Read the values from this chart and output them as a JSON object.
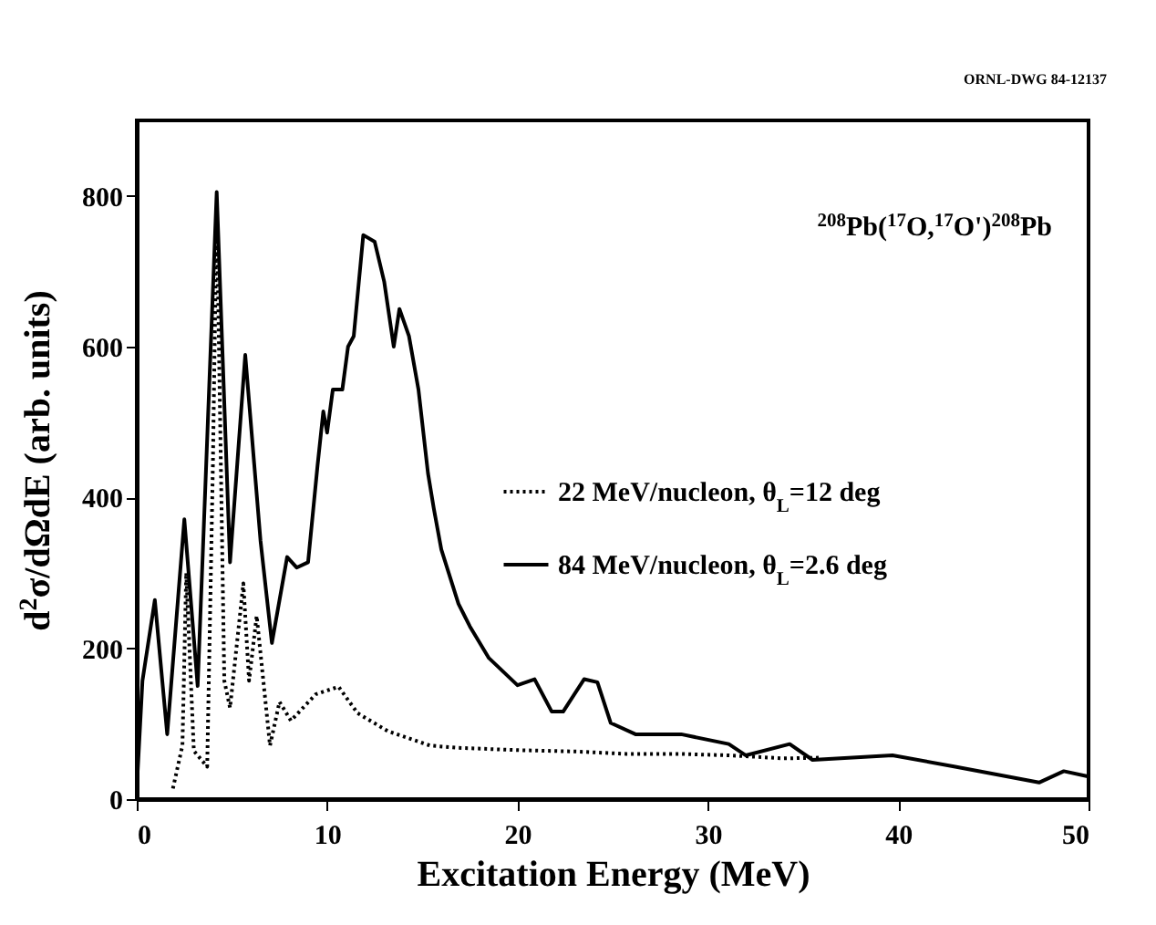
{
  "chart_data": {
    "type": "line",
    "xlabel": "Excitation Energy (MeV)",
    "ylabel": "d$^{2}$σ/dΩdE (arb. units)",
    "annotations": [
      "$^{208}$Pb($^{17}$O,$^{17}$O')$^{208}$Pb",
      "ORNL-DWG 84-12137"
    ],
    "xlim": [
      0,
      50
    ],
    "xticks": [
      0,
      10,
      20,
      30,
      40,
      50
    ],
    "ylim": [
      0,
      900
    ],
    "yticks": [
      0,
      200,
      400,
      600,
      800
    ],
    "legend": "right",
    "grid": false,
    "series": [
      {
        "name": "22 MeV/nucleon, θ$_{L}$=12 deg",
        "color": "#000000",
        "line_style": "dotted",
        "x": [
          1.9,
          2.4,
          2.6,
          3.0,
          3.7,
          4.0,
          4.2,
          4.6,
          4.9,
          5.6,
          5.9,
          6.3,
          7.0,
          7.5,
          8.1,
          9.4,
          10.6,
          11.6,
          13.2,
          15.4,
          16.9,
          20.0,
          23.2,
          25.7,
          28.5,
          31.1,
          34.0,
          36.0
        ],
        "values": [
          14,
          71,
          300,
          64,
          43,
          443,
          786,
          157,
          121,
          286,
          157,
          243,
          71,
          129,
          104,
          139,
          149,
          114,
          90,
          71,
          68,
          65,
          63,
          60,
          60,
          58,
          54,
          55
        ]
      },
      {
        "name": "84 MeV/nucleon, θ$_{L}$=2.6 deg",
        "color": "#000000",
        "line_style": "solid",
        "x": [
          0,
          0.3,
          0.95,
          1.6,
          2.5,
          3.2,
          4.2,
          4.9,
          5.7,
          6.5,
          7.1,
          7.9,
          8.4,
          9.0,
          9.5,
          9.8,
          10.0,
          10.3,
          10.8,
          11.1,
          11.4,
          11.9,
          12.5,
          13.0,
          13.5,
          13.8,
          14.3,
          14.8,
          15.3,
          15.6,
          16.0,
          16.9,
          17.5,
          18.5,
          20.0,
          20.9,
          21.8,
          22.4,
          23.5,
          24.2,
          24.9,
          26.2,
          28.6,
          31.1,
          32.0,
          34.3,
          35.5,
          39.7,
          43.0,
          47.4,
          48.7,
          50.0
        ],
        "values": [
          14,
          157,
          264,
          86,
          371,
          150,
          805,
          314,
          589,
          343,
          207,
          321,
          307,
          314,
          443,
          514,
          486,
          543,
          543,
          600,
          614,
          748,
          739,
          686,
          600,
          650,
          614,
          543,
          432,
          386,
          331,
          259,
          229,
          187,
          151,
          159,
          116,
          116,
          159,
          155,
          101,
          86,
          86,
          73,
          58,
          73,
          52,
          58,
          43,
          22,
          37,
          30
        ]
      }
    ]
  }
}
